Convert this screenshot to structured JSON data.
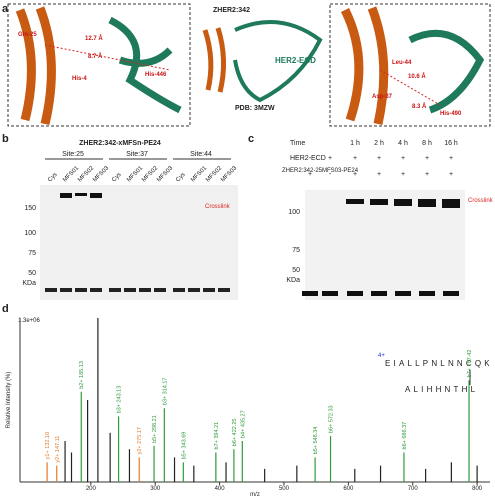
{
  "panels": {
    "a": {
      "letter": "a",
      "left": {
        "res1": "Gln-25",
        "res2": "His-4",
        "res3": "His-446",
        "d1": "12.7 Å",
        "d2": "8.7 Å"
      },
      "middle": {
        "affibody": "ZHER2:342",
        "receptor": "HER2-ECD",
        "pdb": "PDB: 3MZW"
      },
      "right": {
        "res1": "Leu-44",
        "res2": "Asp-37",
        "res3": "His-490",
        "d1": "10.6 Å",
        "d2": "8.3 Å"
      }
    },
    "b": {
      "letter": "b",
      "title": "ZHER2:342-xMFSn-PE24",
      "sites": [
        "Site:25",
        "Site:37",
        "Site:44"
      ],
      "lanes": [
        "Cys",
        "MFS01",
        "MFS02",
        "MFS03"
      ],
      "markers": [
        "150",
        "100",
        "75",
        "50"
      ],
      "unit": "KDa",
      "arrow": "Crosslink"
    },
    "c": {
      "letter": "c",
      "time_label": "Time",
      "times": [
        "1 h",
        "2 h",
        "4 h",
        "8 h",
        "16 h"
      ],
      "row1": "HER2-ECD",
      "row2": "ZHER2:342-25MFS03-PE24",
      "row1_signs": [
        "-",
        "+",
        "+",
        "+",
        "+",
        "+",
        "+"
      ],
      "row2_signs": [
        "+",
        "-",
        "+",
        "+",
        "+",
        "+",
        "+"
      ],
      "markers": [
        "100",
        "75",
        "50"
      ],
      "unit": "KDa",
      "arrow": "Crosslink"
    },
    "d": {
      "letter": "d",
      "charge": "4+",
      "peptide1": "EIALLPNLNNCQK",
      "peptide2": "ALIHHNTHL"
    }
  },
  "chart_data": {
    "type": "stem",
    "scale_label": "1.3e+06",
    "x_label": "m/z",
    "y_label": "Relative Intensity (%)",
    "xlim": [
      90,
      820
    ],
    "xticks": [
      200,
      300,
      400,
      500,
      600,
      700,
      800
    ],
    "ylim": [
      0,
      100
    ],
    "x": [
      132.1,
      147.11,
      160,
      170,
      185.13,
      195,
      211,
      230,
      243.13,
      260,
      275.17,
      298.21,
      314.17,
      330,
      343.69,
      360,
      394.21,
      410,
      422.25,
      435.27,
      470,
      520,
      548.34,
      572.33,
      610,
      650,
      686.37,
      720,
      760,
      787.42,
      800
    ],
    "values": [
      12,
      10,
      25,
      18,
      55,
      50,
      100,
      30,
      40,
      20,
      15,
      22,
      45,
      15,
      12,
      10,
      18,
      12,
      20,
      25,
      8,
      10,
      15,
      28,
      8,
      10,
      18,
      8,
      12,
      62,
      10
    ],
    "labels": [
      "y1+ 132.10",
      "y2+ 147.11",
      null,
      null,
      "b2+ 185.13",
      null,
      null,
      null,
      "b3+ 243.13",
      null,
      "y2+ 275.17",
      "b5+ 298.21",
      "b3+ 314.17",
      null,
      "b5+ 343.69",
      null,
      "b7+ 394.21",
      null,
      "b6+ 422.25",
      "b4+ 435.27",
      null,
      null,
      "b5+ 548.34",
      "b6+ 572.33",
      null,
      null,
      "b6+ 686.37",
      null,
      null,
      "b7+ 787.42",
      null
    ],
    "colors": [
      "#e07b2a",
      "#e07b2a",
      "#222",
      "#222",
      "#2e9a3a",
      "#222",
      "#222",
      "#222",
      "#2e9a3a",
      "#222",
      "#e07b2a",
      "#2e9a3a",
      "#2e9a3a",
      "#222",
      "#2e9a3a",
      "#222",
      "#2e9a3a",
      "#222",
      "#2e9a3a",
      "#2e9a3a",
      "#222",
      "#222",
      "#2e9a3a",
      "#2e9a3a",
      "#222",
      "#222",
      "#2e9a3a",
      "#222",
      "#222",
      "#2e9a3a",
      "#222"
    ]
  }
}
